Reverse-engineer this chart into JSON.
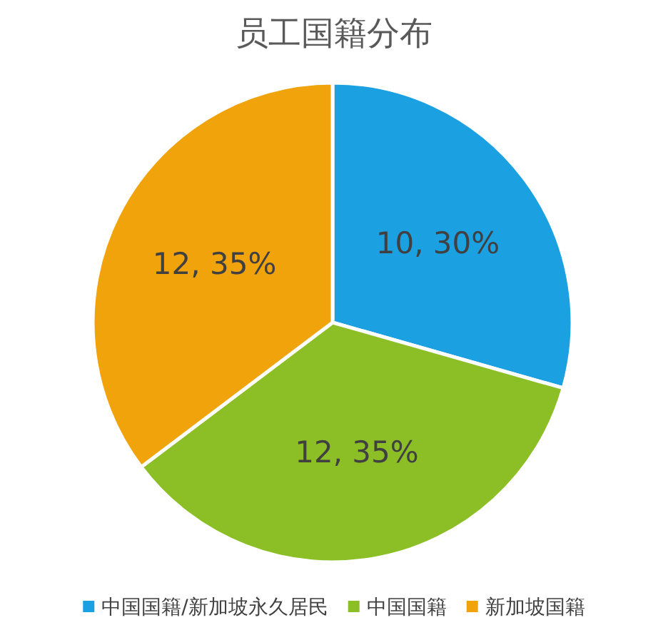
{
  "chart_data": {
    "type": "pie",
    "title": "员工国籍分布",
    "categories": [
      "中国国籍/新加坡永久居民",
      "中国国籍",
      "新加坡国籍"
    ],
    "values": [
      10,
      12,
      12
    ],
    "colors": [
      "#1ba1e2",
      "#8cbf26",
      "#f0a30a"
    ],
    "value_labels": [
      "10, 30%",
      "12, 35%",
      "12, 35%"
    ],
    "legend": "bottom"
  }
}
